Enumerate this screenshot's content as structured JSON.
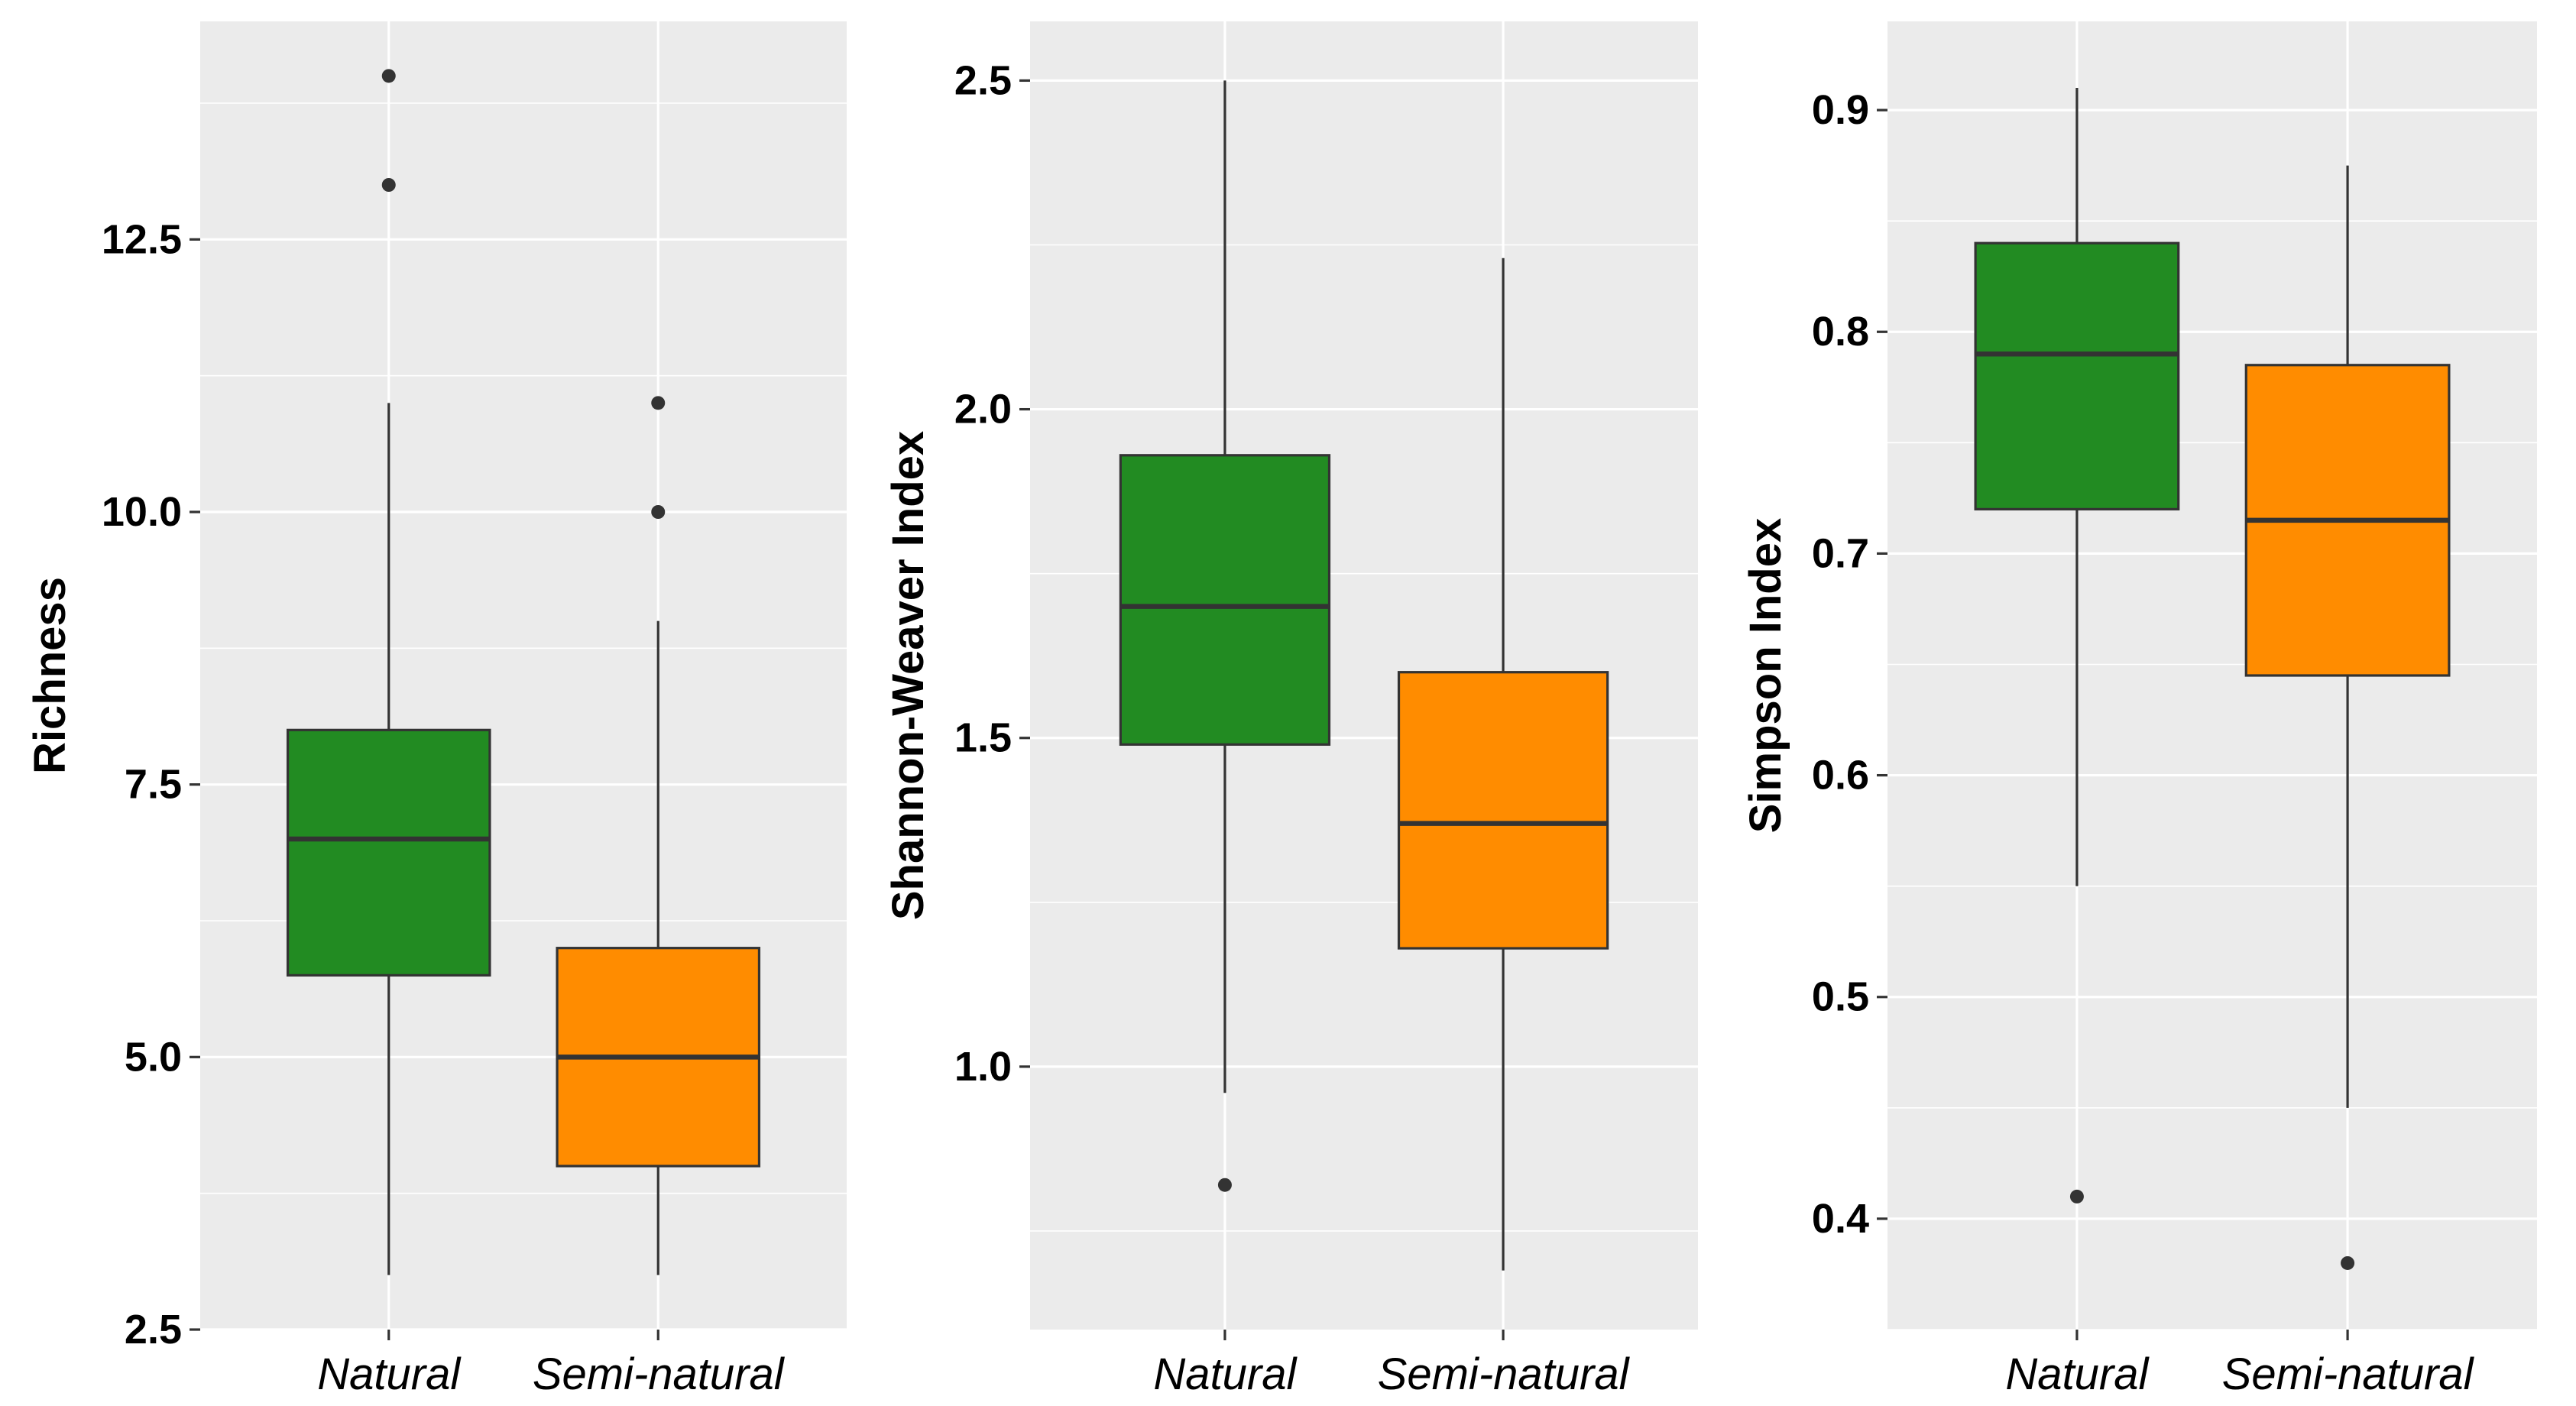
{
  "panel_bg": "#EBEBEB",
  "grid_color": "#FFFFFF",
  "chart_data": [
    {
      "type": "box",
      "ylabel": "Richness",
      "categories": [
        "Natural",
        "Semi-natural"
      ],
      "ylim": [
        2.5,
        14.5
      ],
      "yticks": [
        2.5,
        5.0,
        7.5,
        10.0,
        12.5
      ],
      "ytick_labels": [
        "2.5",
        "5.0",
        "7.5",
        "10.0",
        "12.5"
      ],
      "grid": true,
      "boxes": [
        {
          "name": "Natural",
          "color": "#228B22",
          "whisker_low": 3,
          "q1": 5.75,
          "median": 7,
          "q3": 8,
          "whisker_high": 11,
          "outliers": [
            13,
            14
          ]
        },
        {
          "name": "Semi-natural",
          "color": "#FF8C00",
          "whisker_low": 3,
          "q1": 4,
          "median": 5,
          "q3": 6,
          "whisker_high": 9,
          "outliers": [
            10,
            11
          ]
        }
      ]
    },
    {
      "type": "box",
      "ylabel": "Shannon-Weaver Index",
      "categories": [
        "Natural",
        "Semi-natural"
      ],
      "ylim": [
        0.6,
        2.59
      ],
      "yticks": [
        1.0,
        1.5,
        2.0,
        2.5
      ],
      "ytick_labels": [
        "1.0",
        "1.5",
        "2.0",
        "2.5"
      ],
      "grid": true,
      "boxes": [
        {
          "name": "Natural",
          "color": "#228B22",
          "whisker_low": 0.96,
          "q1": 1.49,
          "median": 1.7,
          "q3": 1.93,
          "whisker_high": 2.5,
          "outliers": [
            0.82
          ]
        },
        {
          "name": "Semi-natural",
          "color": "#FF8C00",
          "whisker_low": 0.69,
          "q1": 1.18,
          "median": 1.37,
          "q3": 1.6,
          "whisker_high": 2.23,
          "outliers": []
        }
      ]
    },
    {
      "type": "box",
      "ylabel": "Simpson Index",
      "categories": [
        "Natural",
        "Semi-natural"
      ],
      "ylim": [
        0.35,
        0.94
      ],
      "yticks": [
        0.4,
        0.5,
        0.6,
        0.7,
        0.8,
        0.9
      ],
      "ytick_labels": [
        "0.4",
        "0.5",
        "0.6",
        "0.7",
        "0.8",
        "0.9"
      ],
      "grid": true,
      "boxes": [
        {
          "name": "Natural",
          "color": "#228B22",
          "whisker_low": 0.55,
          "q1": 0.72,
          "median": 0.79,
          "q3": 0.84,
          "whisker_high": 0.91,
          "outliers": [
            0.41
          ]
        },
        {
          "name": "Semi-natural",
          "color": "#FF8C00",
          "whisker_low": 0.45,
          "q1": 0.645,
          "median": 0.715,
          "q3": 0.785,
          "whisker_high": 0.875,
          "outliers": [
            0.38
          ]
        }
      ]
    }
  ]
}
